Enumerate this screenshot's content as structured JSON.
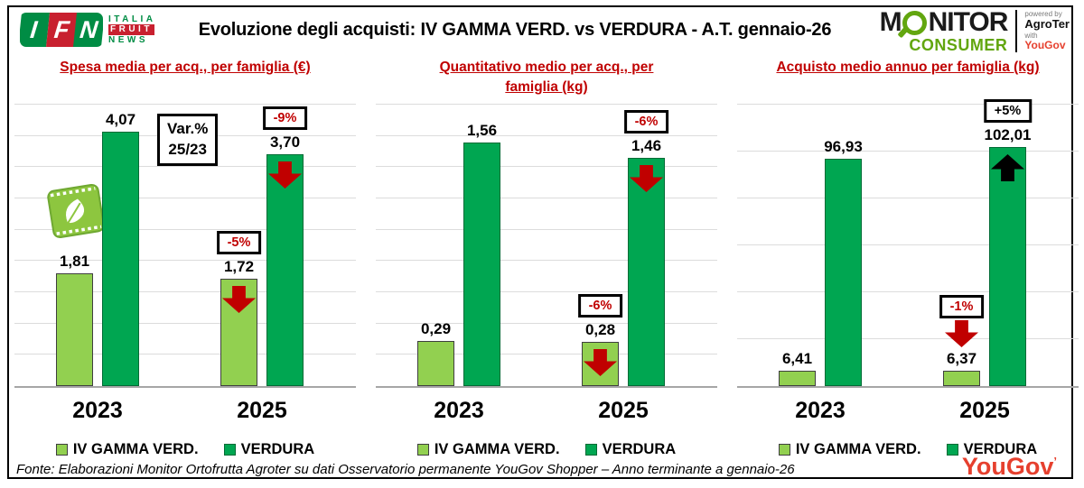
{
  "frame": {
    "border_color": "#000000",
    "background": "#FFFFFF",
    "accent_red": "#C00000"
  },
  "header": {
    "title": "Evoluzione degli acquisti: IV GAMMA VERD. vs VERDURA  - A.T. gennaio-26",
    "ifn_logo": {
      "letters": [
        "I",
        "F",
        "N"
      ],
      "italia": "ITALIA",
      "fruit": "FRUIT",
      "news": "NEWS",
      "green": "#008C44",
      "red": "#C8202F"
    },
    "monitor_logo": {
      "m": "M",
      "nitor": "NITOR",
      "consumer": "CONSUMER",
      "powered_by": "powered by",
      "agroter": "AgroTer",
      "with": "with",
      "yougov": "YouGov",
      "green": "#62A60F",
      "black": "#1A1A1A",
      "red": "#E6402E"
    }
  },
  "chart_data": [
    {
      "type": "bar",
      "title": "Spesa media per acq., per famiglia (€)",
      "categories": [
        "2023",
        "2025"
      ],
      "series": [
        {
          "name": "IV GAMMA VERD.",
          "color": "#92D050",
          "border": "#3F3F3F",
          "values": [
            1.81,
            1.72
          ],
          "labels": [
            "1,81",
            "1,72"
          ]
        },
        {
          "name": "VERDURA",
          "color": "#00A651",
          "border": "#006B35",
          "values": [
            4.07,
            3.7
          ],
          "labels": [
            "4,07",
            "3,70"
          ]
        }
      ],
      "annotations": [
        {
          "series": 0,
          "category": 1,
          "label": "-5%",
          "label_color": "#C00000",
          "arrow": "down",
          "arrow_color": "#C00000",
          "arrow_pos": "inside"
        },
        {
          "series": 1,
          "category": 1,
          "label": "-9%",
          "label_color": "#C00000",
          "arrow": "down",
          "arrow_color": "#C00000",
          "arrow_pos": "inside"
        }
      ],
      "ylim": [
        0,
        4.5
      ],
      "grid_step": 0.5,
      "grid": true,
      "legend_position": "bottom",
      "var_box": [
        "Var.%",
        "25/23"
      ]
    },
    {
      "type": "bar",
      "title": "Quantitativo medio per acq., per famiglia (kg)",
      "categories": [
        "2023",
        "2025"
      ],
      "series": [
        {
          "name": "IV GAMMA VERD.",
          "color": "#92D050",
          "border": "#3F3F3F",
          "values": [
            0.29,
            0.28
          ],
          "labels": [
            "0,29",
            "0,28"
          ]
        },
        {
          "name": "VERDURA",
          "color": "#00A651",
          "border": "#006B35",
          "values": [
            1.56,
            1.46
          ],
          "labels": [
            "1,56",
            "1,46"
          ]
        }
      ],
      "annotations": [
        {
          "series": 0,
          "category": 1,
          "label": "-6%",
          "label_color": "#C00000",
          "arrow": "down",
          "arrow_color": "#C00000",
          "arrow_pos": "inside"
        },
        {
          "series": 1,
          "category": 1,
          "label": "-6%",
          "label_color": "#C00000",
          "arrow": "down",
          "arrow_color": "#C00000",
          "arrow_pos": "inside"
        }
      ],
      "ylim": [
        0,
        1.8
      ],
      "grid_step": 0.2,
      "grid": true,
      "legend_position": "bottom"
    },
    {
      "type": "bar",
      "title": "Acquisto medio annuo per famiglia (kg)",
      "categories": [
        "2023",
        "2025"
      ],
      "series": [
        {
          "name": "IV GAMMA VERD.",
          "color": "#92D050",
          "border": "#3F3F3F",
          "values": [
            6.41,
            6.37
          ],
          "labels": [
            "6,41",
            "6,37"
          ]
        },
        {
          "name": "VERDURA",
          "color": "#00A651",
          "border": "#006B35",
          "values": [
            96.93,
            102.01
          ],
          "labels": [
            "96,93",
            "102,01"
          ]
        }
      ],
      "annotations": [
        {
          "series": 0,
          "category": 1,
          "label": "-1%",
          "label_color": "#C00000",
          "arrow": "down",
          "arrow_color": "#C00000",
          "arrow_pos": "above"
        },
        {
          "series": 1,
          "category": 1,
          "label": "+5%",
          "label_color": "#000000",
          "arrow": "up",
          "arrow_color": "#000000",
          "arrow_pos": "inside"
        }
      ],
      "ylim": [
        0,
        120
      ],
      "grid_step": 20,
      "grid": true,
      "legend_position": "bottom"
    }
  ],
  "footer": {
    "fonte": "Fonte: Elaborazioni Monitor Ortofrutta Agroter su dati Osservatorio permanente YouGov Shopper  – Anno terminante a gennaio-26",
    "yougov": "YouGov"
  }
}
